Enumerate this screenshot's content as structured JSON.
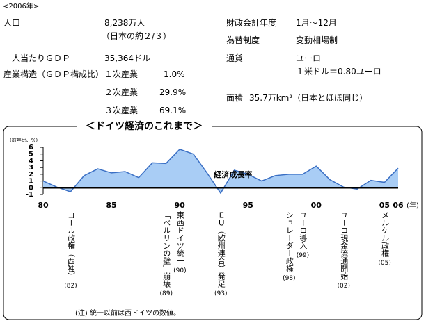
{
  "header": "<2006年>",
  "facts_left": [
    {
      "label": "人口",
      "value": "8,238万人",
      "note": "（日本の約２/３）"
    },
    {
      "label": "一人当たりＧＤＰ",
      "value": "35,364ドル"
    },
    {
      "label": "産業構造（ＧＤＰ構成比）",
      "items": [
        {
          "sector": "１次産業",
          "share": "1.0%"
        },
        {
          "sector": "２次産業",
          "share": "29.9%"
        },
        {
          "sector": "３次産業",
          "share": "69.1%"
        }
      ]
    }
  ],
  "facts_right": [
    {
      "label": "財政会計年度",
      "value": "1月～12月"
    },
    {
      "label": "為替制度",
      "value": "変動相場制"
    },
    {
      "label": "通貨",
      "value": "ユーロ",
      "note": "１米ドル＝0.80ユーロ"
    },
    {
      "label": "面積",
      "value": "35.7万km²（日本とほぼ同じ）"
    }
  ],
  "chart_data": {
    "type": "area",
    "title": "＜ドイツ経済のこれまで＞",
    "y_label": "(前年比、%)",
    "x_label": "(年)",
    "x": [
      1980,
      1981,
      1982,
      1983,
      1984,
      1985,
      1986,
      1987,
      1988,
      1989,
      1990,
      1991,
      1992,
      1993,
      1994,
      1995,
      1996,
      1997,
      1998,
      1999,
      2000,
      2001,
      2002,
      2003,
      2004,
      2005,
      2006
    ],
    "series": [
      {
        "name": "経済成長率",
        "color": "#3a6fc4",
        "fill": "#a9cdf5",
        "values": [
          1.0,
          0.1,
          -0.6,
          1.8,
          2.8,
          2.2,
          2.4,
          1.5,
          3.7,
          3.6,
          5.7,
          5.0,
          2.2,
          -0.8,
          2.6,
          2.0,
          1.0,
          1.8,
          2.0,
          2.0,
          3.2,
          1.2,
          0.1,
          -0.2,
          1.1,
          0.8,
          2.9
        ]
      }
    ],
    "xlim": [
      1980,
      2006
    ],
    "xticks": [
      {
        "value": 1980,
        "label": "80"
      },
      {
        "value": 1985,
        "label": "85"
      },
      {
        "value": 1990,
        "label": "90"
      },
      {
        "value": 1995,
        "label": "95"
      },
      {
        "value": 2000,
        "label": "00"
      },
      {
        "value": 2005,
        "label": "05"
      },
      {
        "value": 2006,
        "label": "06"
      }
    ],
    "ylim": [
      -1,
      6
    ],
    "yticks": [
      -1,
      0,
      1,
      2,
      3,
      4,
      5,
      6
    ],
    "annotations": [
      {
        "x": 1982,
        "text": "コール政権（西独）",
        "label": "(82)"
      },
      {
        "x": 1989,
        "text": "「ベルリンの壁」崩壊",
        "label": "(89)"
      },
      {
        "x": 1990,
        "text": "東西ドイツ統一",
        "label": "(90)"
      },
      {
        "x": 1993,
        "text": "ＥＵ（欧州連合）発足",
        "label": "(93)"
      },
      {
        "x": 1998,
        "text": "シュレーダー政権",
        "label": "(98)"
      },
      {
        "x": 1999,
        "text": "ユーロ導入",
        "label": "(99)"
      },
      {
        "x": 2002,
        "text": "ユーロ現金流通開始",
        "label": "(02)"
      },
      {
        "x": 2005,
        "text": "メルケル政権",
        "label": "(05)"
      }
    ],
    "note": "(注) 統一以前は西ドイツの数値。"
  }
}
